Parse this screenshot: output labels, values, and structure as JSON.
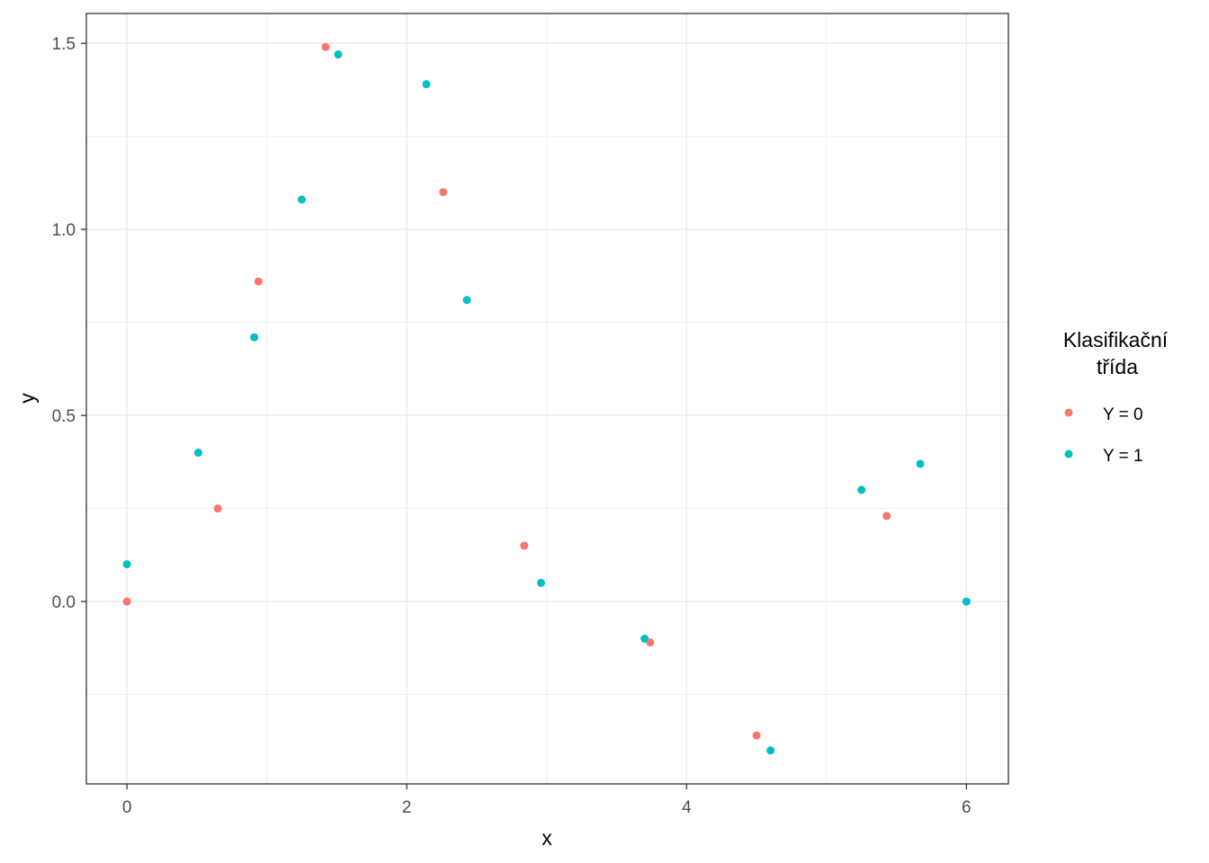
{
  "chart_data": {
    "type": "scatter",
    "title": "",
    "xlabel": "x",
    "ylabel": "y",
    "xlim": [
      -0.29,
      6.3
    ],
    "ylim": [
      -0.49,
      1.58
    ],
    "xticks": [
      0,
      2,
      4,
      6
    ],
    "xtick_labels": [
      "0",
      "2",
      "4",
      "6"
    ],
    "yticks": [
      0,
      0.5,
      1,
      1.5
    ],
    "ytick_labels": [
      "0.0",
      "0.5",
      "1.0",
      "1.5"
    ],
    "grid": true,
    "legend": {
      "title": [
        "Klasifikační",
        "třída"
      ],
      "placement": "right"
    },
    "series": [
      {
        "name": "Y = 0",
        "color": "#F8766D",
        "x": [
          0,
          0.65,
          0.94,
          1.42,
          2.26,
          2.84,
          3.74,
          4.5,
          5.43
        ],
        "y": [
          0,
          0.25,
          0.86,
          1.49,
          1.1,
          0.15,
          -0.11,
          -0.36,
          0.23
        ]
      },
      {
        "name": "Y = 1",
        "color": "#00BFC4",
        "x": [
          0,
          0.51,
          0.91,
          1.25,
          1.51,
          2.14,
          2.43,
          2.96,
          3.7,
          4.6,
          5.25,
          5.67,
          6.0
        ],
        "y": [
          0.1,
          0.4,
          0.71,
          1.08,
          1.47,
          1.39,
          0.81,
          0.05,
          -0.1,
          -0.4,
          0.3,
          0.37,
          0.0
        ]
      }
    ]
  }
}
